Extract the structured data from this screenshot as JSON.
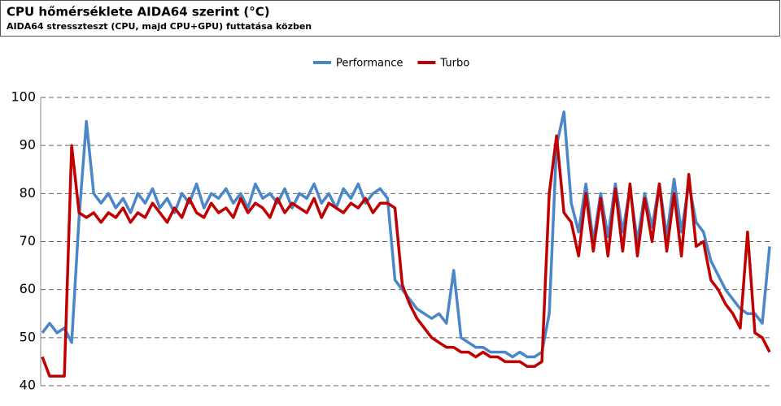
{
  "chart_data": {
    "type": "line",
    "title": "CPU hőmérséklete AIDA64 szerint (°C)",
    "subtitle": "AIDA64 stresszteszt (CPU, majd CPU+GPU) futtatása közben",
    "ylim": [
      40,
      100
    ],
    "yticks": [
      40,
      50,
      60,
      70,
      80,
      90,
      100
    ],
    "grid": true,
    "legend": "top",
    "series": [
      {
        "name": "Performance",
        "color": "#4a86c8",
        "values": [
          51,
          53,
          51,
          52,
          49,
          75,
          95,
          80,
          78,
          80,
          77,
          79,
          76,
          80,
          78,
          81,
          77,
          79,
          76,
          80,
          78,
          82,
          77,
          80,
          79,
          81,
          78,
          80,
          77,
          82,
          79,
          80,
          78,
          81,
          77,
          80,
          79,
          82,
          78,
          80,
          77,
          81,
          79,
          82,
          78,
          80,
          81,
          79,
          62,
          60,
          58,
          56,
          55,
          54,
          55,
          53,
          64,
          50,
          49,
          48,
          48,
          47,
          47,
          47,
          46,
          47,
          46,
          46,
          47,
          55,
          90,
          97,
          78,
          72,
          82,
          70,
          80,
          71,
          82,
          72,
          81,
          70,
          80,
          73,
          82,
          71,
          83,
          72,
          82,
          74,
          72,
          66,
          63,
          60,
          58,
          56,
          55,
          55,
          53,
          69
        ]
      },
      {
        "name": "Turbo",
        "color": "#c00000",
        "values": [
          46,
          42,
          42,
          42,
          90,
          76,
          75,
          76,
          74,
          76,
          75,
          77,
          74,
          76,
          75,
          78,
          76,
          74,
          77,
          75,
          79,
          76,
          75,
          78,
          76,
          77,
          75,
          79,
          76,
          78,
          77,
          75,
          79,
          76,
          78,
          77,
          76,
          79,
          75,
          78,
          77,
          76,
          78,
          77,
          79,
          76,
          78,
          78,
          77,
          61,
          57,
          54,
          52,
          50,
          49,
          48,
          48,
          47,
          47,
          46,
          47,
          46,
          46,
          45,
          45,
          45,
          44,
          44,
          45,
          80,
          92,
          76,
          74,
          67,
          80,
          68,
          79,
          67,
          81,
          68,
          82,
          67,
          79,
          70,
          82,
          68,
          80,
          67,
          84,
          69,
          70,
          62,
          60,
          57,
          55,
          52,
          72,
          51,
          50,
          47
        ]
      }
    ]
  }
}
